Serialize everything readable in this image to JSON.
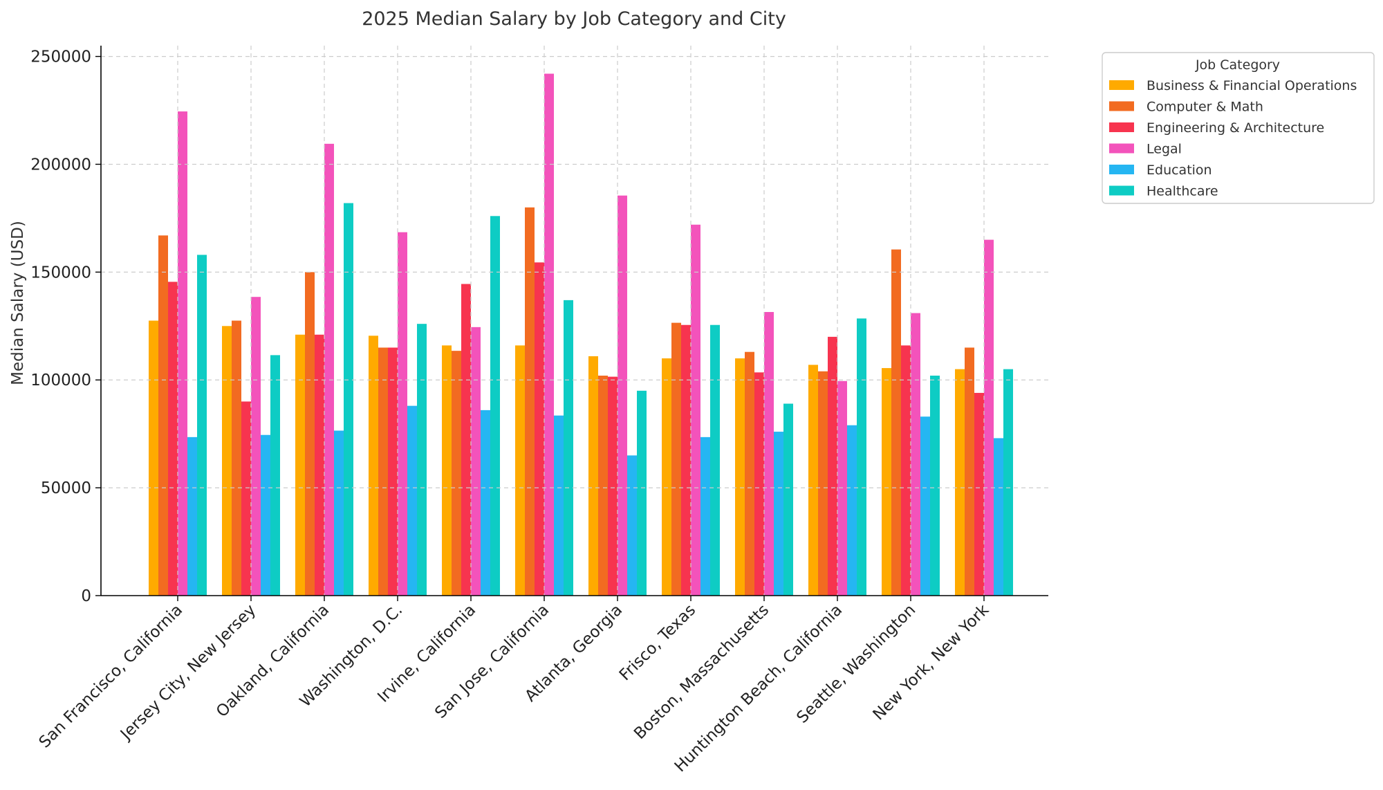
{
  "chart_data": {
    "type": "bar",
    "title": "2025 Median Salary by Job Category and City",
    "xlabel": "",
    "ylabel": "Median Salary (USD)",
    "ylim": [
      0,
      255000
    ],
    "yticks": [
      0,
      50000,
      100000,
      150000,
      200000,
      250000
    ],
    "grid": true,
    "legend": {
      "title": "Job Category",
      "placement": "outside-top-right"
    },
    "categories": [
      "San Francisco, California",
      "Jersey City, New Jersey",
      "Oakland, California",
      "Washington, D.C.",
      "Irvine, California",
      "San Jose, California",
      "Atlanta, Georgia",
      "Frisco, Texas",
      "Boston, Massachusetts",
      "Huntington Beach, California",
      "Seattle, Washington",
      "New York, New York"
    ],
    "series": [
      {
        "name": "Business & Financial Operations",
        "color": "#FFAA00",
        "values": [
          127500,
          125000,
          121000,
          120500,
          116000,
          116000,
          111000,
          110000,
          110000,
          107000,
          105500,
          105000
        ]
      },
      {
        "name": "Computer & Math",
        "color": "#F26B21",
        "values": [
          167000,
          127500,
          150000,
          115000,
          113500,
          180000,
          102000,
          126500,
          113000,
          104000,
          160500,
          115000
        ]
      },
      {
        "name": "Engineering & Architecture",
        "color": "#F7344F",
        "values": [
          145500,
          90000,
          121000,
          115000,
          144500,
          154500,
          101500,
          125500,
          103500,
          120000,
          116000,
          94000
        ]
      },
      {
        "name": "Legal",
        "color": "#F353BB",
        "values": [
          224500,
          138500,
          209500,
          168500,
          124500,
          242000,
          185500,
          172000,
          131500,
          99500,
          131000,
          165000
        ]
      },
      {
        "name": "Education",
        "color": "#25B6F2",
        "values": [
          73500,
          74500,
          76500,
          88000,
          86000,
          83500,
          65000,
          73500,
          76000,
          79000,
          83000,
          73000
        ]
      },
      {
        "name": "Healthcare",
        "color": "#0ECCC4",
        "values": [
          158000,
          111500,
          182000,
          126000,
          176000,
          137000,
          95000,
          125500,
          89000,
          128500,
          102000,
          105000
        ]
      }
    ]
  }
}
